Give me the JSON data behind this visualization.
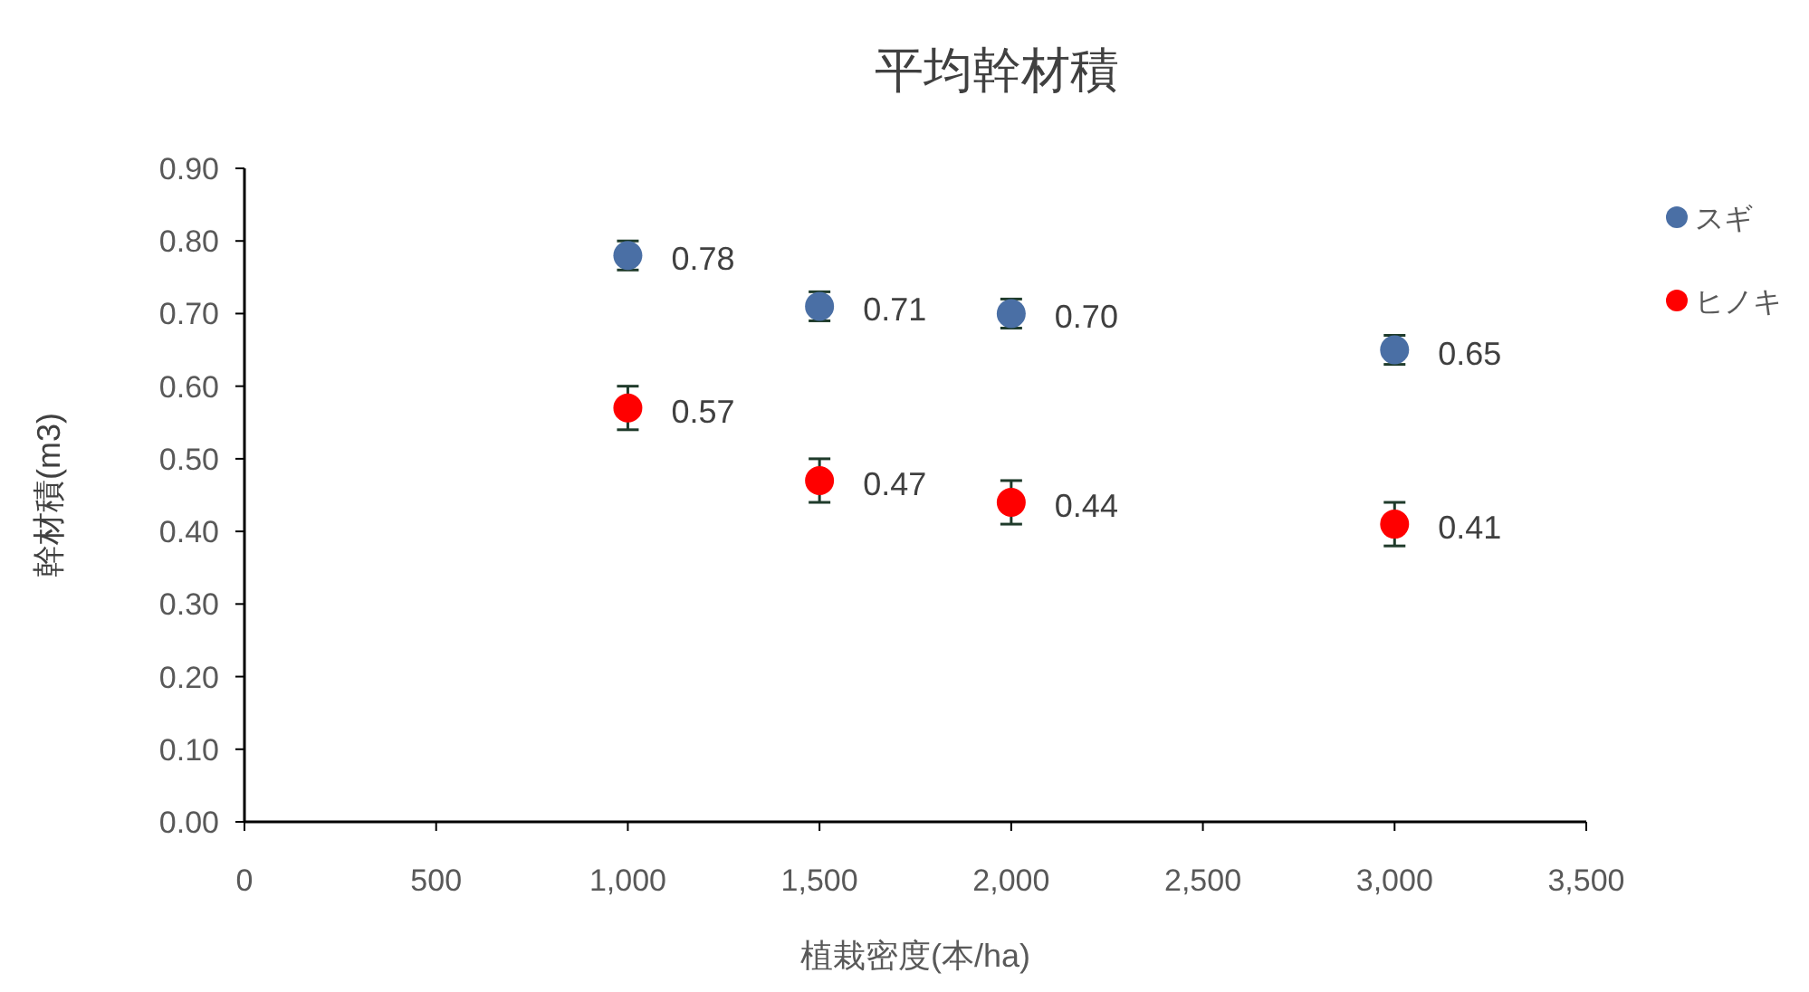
{
  "chart_data": {
    "type": "scatter",
    "title": "平均幹材積",
    "xlabel": "植栽密度(本/ha)",
    "ylabel": "幹材積(m3)",
    "xlim": [
      0,
      3500
    ],
    "xticks": [
      0,
      500,
      {
        "value": 1000,
        "label": "1,000"
      },
      {
        "value": 1500,
        "label": "1,500"
      },
      {
        "value": 2000,
        "label": "2,000"
      },
      {
        "value": 2500,
        "label": "2,500"
      },
      {
        "value": 3000,
        "label": "3,000"
      },
      {
        "value": 3500,
        "label": "3,500"
      }
    ],
    "ylim": [
      0,
      0.9
    ],
    "yticks": [
      {
        "value": 0,
        "label": "0.00"
      },
      {
        "value": 0.1,
        "label": "0.10"
      },
      {
        "value": 0.2,
        "label": "0.20"
      },
      {
        "value": 0.3,
        "label": "0.30"
      },
      {
        "value": 0.4,
        "label": "0.40"
      },
      {
        "value": 0.5,
        "label": "0.50"
      },
      {
        "value": 0.6,
        "label": "0.60"
      },
      {
        "value": 0.7,
        "label": "0.70"
      },
      {
        "value": 0.8,
        "label": "0.80"
      },
      {
        "value": 0.9,
        "label": "0.90"
      }
    ],
    "grid": false,
    "legend": "right",
    "marker": "circle",
    "series": [
      {
        "name": "スギ",
        "color": "#4a6fa5",
        "x": [
          1000,
          1500,
          2000,
          3000
        ],
        "values": [
          0.78,
          0.71,
          0.7,
          0.65
        ],
        "errors": [
          0.02,
          0.02,
          0.02,
          0.02
        ],
        "value_labels": [
          "0.78",
          "0.71",
          "0.70",
          "0.65"
        ]
      },
      {
        "name": "ヒノキ",
        "color": "#ff0000",
        "x": [
          1000,
          1500,
          2000,
          3000
        ],
        "values": [
          0.57,
          0.47,
          0.44,
          0.41
        ],
        "errors": [
          0.03,
          0.03,
          0.03,
          0.03
        ],
        "value_labels": [
          "0.57",
          "0.47",
          "0.44",
          "0.41"
        ]
      }
    ]
  }
}
